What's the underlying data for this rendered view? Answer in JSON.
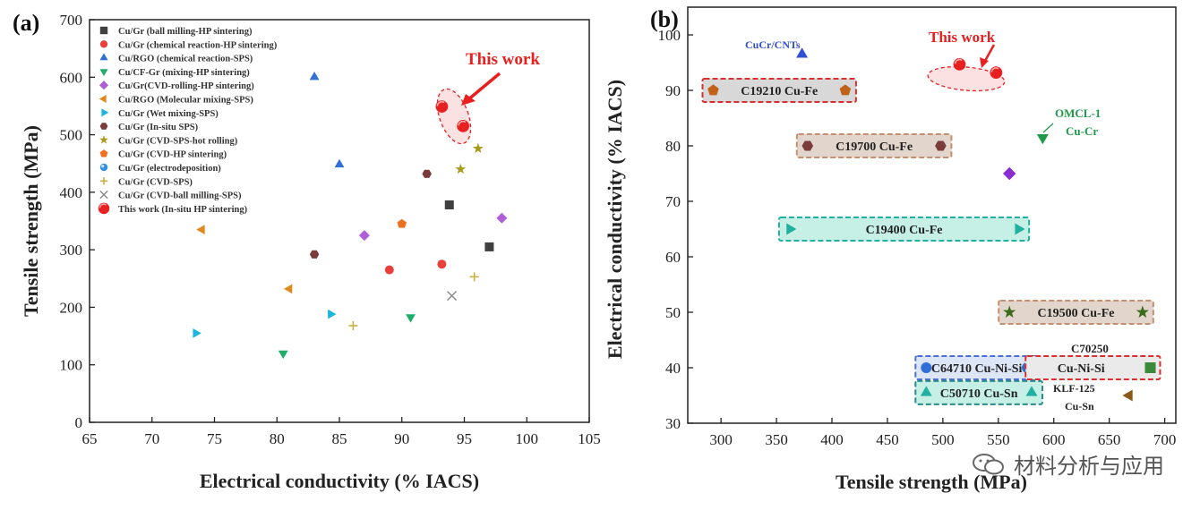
{
  "chart_data": [
    {
      "type": "scatter",
      "panel_label": "(a)",
      "xlabel": "Electrical conductivity (% IACS)",
      "ylabel": "Tensile strength (MPa)",
      "xlim": [
        65,
        105
      ],
      "ylim": [
        0,
        700
      ],
      "xticks": [
        65,
        70,
        75,
        80,
        85,
        90,
        95,
        100,
        105
      ],
      "yticks": [
        0,
        100,
        200,
        300,
        400,
        500,
        600,
        700
      ],
      "legend_position": "top-left",
      "series": [
        {
          "name": "Cu/Gr (ball milling-HP sintering)",
          "marker": "square",
          "color": "#404040",
          "points": [
            [
              93.8,
              378
            ],
            [
              97,
              305
            ]
          ]
        },
        {
          "name": "Cu/Gr (chemical reaction-HP sintering)",
          "marker": "circle",
          "color": "#e8413c",
          "points": [
            [
              89,
              265
            ],
            [
              93.2,
              275
            ]
          ]
        },
        {
          "name": "Cu/RGO (chemical reaction-SPS)",
          "marker": "triangle-up",
          "color": "#2f6fd6",
          "points": [
            [
              83,
              600
            ],
            [
              85,
              448
            ]
          ]
        },
        {
          "name": "Cu/CF-Gr (mixing-HP sintering)",
          "marker": "triangle-down",
          "color": "#1fae6a",
          "points": [
            [
              80.5,
              120
            ],
            [
              90.7,
              183
            ]
          ]
        },
        {
          "name": "Cu/Gr(CVD-rolling-HP sintering)",
          "marker": "diamond",
          "color": "#b05fd6",
          "points": [
            [
              87,
              325
            ],
            [
              98,
              355
            ]
          ]
        },
        {
          "name": "Cu/RGO (Molecular mixing-SPS)",
          "marker": "triangle-left",
          "color": "#e08a1e",
          "points": [
            [
              74,
              335
            ],
            [
              81,
              232
            ]
          ]
        },
        {
          "name": "Cu/Gr (Wet mixing-SPS)",
          "marker": "triangle-right",
          "color": "#1cb5e0",
          "points": [
            [
              73.5,
              155
            ],
            [
              84.3,
              188
            ]
          ]
        },
        {
          "name": "Cu/Gr (In-situ SPS)",
          "marker": "hexagon",
          "color": "#7b3b3b",
          "points": [
            [
              83,
              292
            ],
            [
              92,
              432
            ]
          ]
        },
        {
          "name": "Cu/Gr (CVD-SPS-hot rolling)",
          "marker": "star",
          "color": "#a89a1a",
          "points": [
            [
              94.7,
              440
            ],
            [
              96.1,
              476
            ]
          ]
        },
        {
          "name": "Cu/Gr (CVD-HP sintering)",
          "marker": "pentagon",
          "color": "#f07020",
          "points": [
            [
              90,
              345
            ]
          ]
        },
        {
          "name": "Cu/Gr (electrodeposition)",
          "marker": "ball",
          "color": "#2f8fe0",
          "points": []
        },
        {
          "name": "Cu/Gr (CVD-SPS)",
          "marker": "plus",
          "color": "#c9b040",
          "points": [
            [
              86.1,
              168
            ],
            [
              95.8,
              253
            ]
          ]
        },
        {
          "name": "Cu/Gr (CVD-ball milling-SPS)",
          "marker": "cross",
          "color": "#888888",
          "points": [
            [
              94,
              220
            ]
          ]
        },
        {
          "name": "This work (In-situ HP sintering)",
          "marker": "this-work",
          "color": "#e82020",
          "points": [
            [
              93.2,
              549
            ],
            [
              94.9,
              515
            ]
          ]
        }
      ],
      "annotation": {
        "text": "This work",
        "color": "#e82020"
      }
    },
    {
      "type": "scatter",
      "panel_label": "(b)",
      "xlabel": "Tensile strength (MPa)",
      "ylabel": "Electrical conductivity (% IACS)",
      "xlim": [
        270,
        710
      ],
      "ylim": [
        30,
        105
      ],
      "xticks": [
        300,
        350,
        400,
        450,
        500,
        550,
        600,
        650,
        700
      ],
      "yticks": [
        30,
        40,
        50,
        60,
        70,
        80,
        90,
        100
      ],
      "points": [
        {
          "label": "CuCr/CNTs",
          "marker": "triangle-up",
          "color": "#2f4fd6",
          "x": 373,
          "y": 96.5
        },
        {
          "label": "This work",
          "marker": "this-work",
          "color": "#e82020",
          "x": 515,
          "y": 94.7
        },
        {
          "label": "This work",
          "marker": "this-work",
          "color": "#e82020",
          "x": 548,
          "y": 93.2
        },
        {
          "label": "OMCL-1 Cu-Cr",
          "marker": "triangle-down",
          "color": "#1f9a4a",
          "x": 590,
          "y": 81.5
        },
        {
          "label": "",
          "marker": "diamond",
          "color": "#8a2ccf",
          "x": 560,
          "y": 75
        },
        {
          "label": "KLF-125 Cu-Sn",
          "marker": "triangle-left",
          "color": "#8b5a1a",
          "x": 668,
          "y": 35
        },
        {
          "label": "C70250 Cu-Ni-Si",
          "marker": "square",
          "color": "#3a8a3a",
          "x": 687,
          "y": 40
        }
      ],
      "ranges": [
        {
          "name": "C19210 Cu-Fe",
          "x1": 293,
          "x2": 412,
          "y": 90,
          "marker": "pentagon",
          "color": "#c0621a",
          "box_color": "#d83030",
          "fill": "#d8d8d8"
        },
        {
          "name": "C19700 Cu-Fe",
          "x1": 378,
          "x2": 498,
          "y": 80,
          "marker": "hexagon",
          "color": "#7b3b3b",
          "box_color": "#c49070",
          "fill": "#e2d6cc"
        },
        {
          "name": "C19400   Cu-Fe",
          "x1": 362,
          "x2": 568,
          "y": 65,
          "marker": "triangle-right",
          "color": "#20b0a0",
          "box_color": "#20b0a0",
          "fill": "#c6f0e6"
        },
        {
          "name": "C19500 Cu-Fe",
          "x1": 560,
          "x2": 680,
          "y": 50,
          "marker": "star",
          "color": "#3a6a1a",
          "box_color": "#c49070",
          "fill": "#e2d6cc"
        },
        {
          "name": "C64710 Cu-Ni-Si",
          "x1": 485,
          "x2": 576,
          "y": 40,
          "marker": "circle",
          "color": "#2f6fd6",
          "box_color": "#4a70d8",
          "fill": "#dde6f6"
        },
        {
          "name": "C50710 Cu-Sn",
          "x1": 485,
          "x2": 580,
          "y": 35.5,
          "marker": "triangle-up",
          "color": "#20b0a0",
          "box_color": "#2a8a8a",
          "fill": "#c6f0e6"
        }
      ],
      "labels": {
        "cucr_cnts": "CuCr/CNTs",
        "this_work": "This work",
        "omcl_1": "OMCL-1",
        "omcl_cu_cr": "Cu-Cr",
        "c70250": "C70250",
        "c70250_cu_ni_si": "Cu-Ni-Si",
        "klf_125": "KLF-125",
        "klf_cu_sn": "Cu-Sn"
      }
    }
  ],
  "watermark": {
    "text": "材料分析与应用"
  },
  "colors": {
    "highlight": "#e82020",
    "axis": "#222222"
  }
}
